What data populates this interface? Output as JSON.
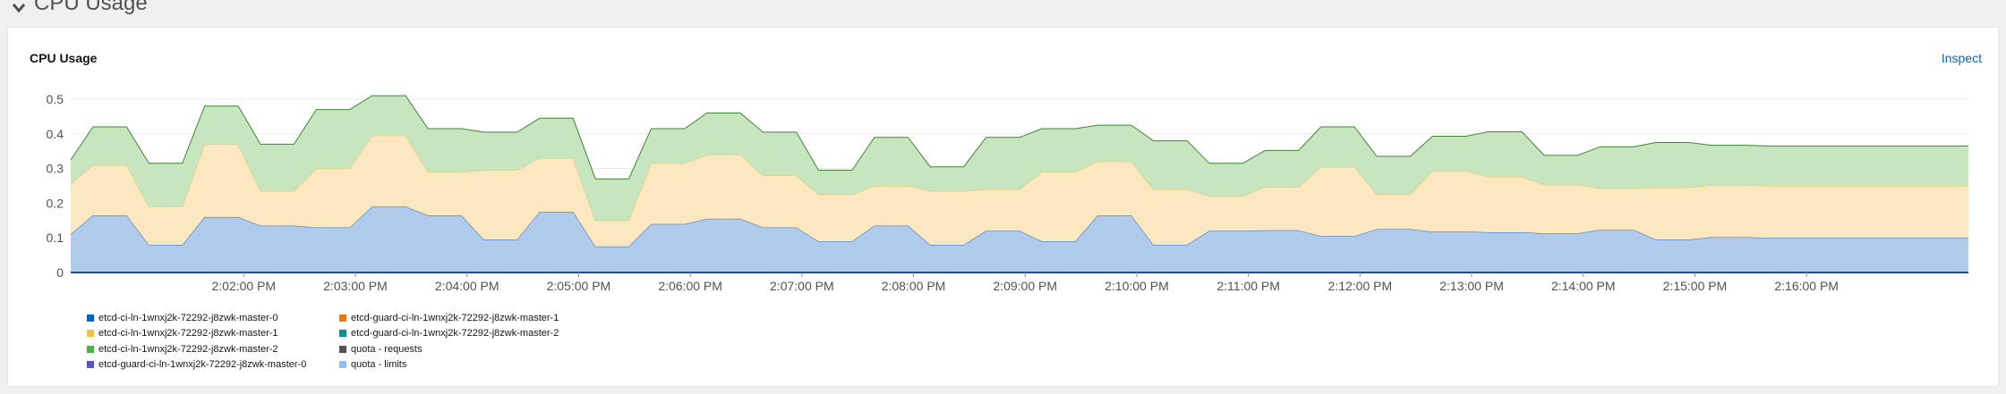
{
  "section": {
    "title": "CPU Usage",
    "chevron_icon": "chevron-down-icon"
  },
  "card": {
    "title": "CPU Usage",
    "inspect_label": "Inspect"
  },
  "chart_data": {
    "type": "area",
    "stacked": true,
    "title": "CPU Usage",
    "xlabel": "",
    "ylabel": "",
    "ylim": [
      0,
      0.5
    ],
    "yticks": [
      "0",
      "0.1",
      "0.2",
      "0.3",
      "0.4",
      "0.5"
    ],
    "xtick_labels": [
      "2:02:00 PM",
      "2:03:00 PM",
      "2:04:00 PM",
      "2:05:00 PM",
      "2:06:00 PM",
      "2:07:00 PM",
      "2:08:00 PM",
      "2:09:00 PM",
      "2:10:00 PM",
      "2:11:00 PM",
      "2:12:00 PM",
      "2:13:00 PM",
      "2:14:00 PM",
      "2:15:00 PM",
      "2:16:00 PM"
    ],
    "x_minutes": [
      -0.55,
      -0.35,
      -0.05,
      0.15,
      0.45,
      0.65,
      0.95,
      1.15,
      1.45,
      1.65,
      1.95,
      2.15,
      2.45,
      2.65,
      2.95,
      3.15,
      3.45,
      3.65,
      3.95,
      4.15,
      4.45,
      4.65,
      4.95,
      5.15,
      5.45,
      5.65,
      5.95,
      6.15,
      6.45,
      6.65,
      6.95,
      7.15,
      7.45,
      7.65,
      7.95,
      8.15,
      8.45,
      8.65,
      8.95,
      9.15,
      9.45,
      9.65,
      9.95,
      10.15,
      10.45,
      10.65,
      10.95,
      11.15,
      11.45,
      11.65,
      11.95,
      12.15,
      12.45,
      12.65,
      12.95,
      13.15,
      13.45,
      13.65,
      13.95,
      14.15,
      14.45,
      14.65,
      14.95,
      15.15,
      15.45,
      15.65,
      15.95,
      16.15,
      16.45
    ],
    "x_axis_start": "2:01:00 PM",
    "series": [
      {
        "name": "etcd-ci-ln-1wnxj2k-72292-j8zwk-master-0",
        "color": "#b0cbec",
        "line": "#2b6cc4",
        "values": [
          0.11,
          0.165,
          0.165,
          0.08,
          0.08,
          0.16,
          0.16,
          0.135,
          0.135,
          0.13,
          0.13,
          0.19,
          0.19,
          0.165,
          0.165,
          0.095,
          0.095,
          0.175,
          0.175,
          0.075,
          0.075,
          0.14,
          0.14,
          0.155,
          0.155,
          0.13,
          0.13,
          0.09,
          0.09,
          0.135,
          0.135,
          0.08,
          0.08,
          0.12,
          0.12,
          0.09,
          0.09,
          0.165,
          0.165,
          0.08,
          0.08,
          0.12,
          0.12,
          0.122,
          0.122,
          0.105,
          0.105,
          0.125,
          0.125,
          0.118,
          0.118,
          0.116,
          0.116,
          0.113,
          0.113,
          0.123,
          0.123,
          0.095,
          0.095,
          0.102,
          0.102,
          0.1,
          0.1,
          0.1,
          0.1,
          0.1,
          0.1,
          0.1,
          0.1
        ]
      },
      {
        "name": "etcd-ci-ln-1wnxj2k-72292-j8zwk-master-1",
        "color": "#fbe7c0",
        "line": "#e3c45e",
        "values": [
          0.145,
          0.145,
          0.145,
          0.11,
          0.11,
          0.21,
          0.21,
          0.1,
          0.1,
          0.17,
          0.17,
          0.205,
          0.205,
          0.125,
          0.125,
          0.2,
          0.2,
          0.155,
          0.155,
          0.075,
          0.075,
          0.175,
          0.175,
          0.185,
          0.185,
          0.15,
          0.15,
          0.135,
          0.135,
          0.115,
          0.115,
          0.155,
          0.155,
          0.12,
          0.12,
          0.2,
          0.2,
          0.155,
          0.155,
          0.16,
          0.16,
          0.1,
          0.1,
          0.125,
          0.125,
          0.2,
          0.2,
          0.1,
          0.1,
          0.175,
          0.175,
          0.16,
          0.16,
          0.14,
          0.14,
          0.12,
          0.12,
          0.15,
          0.15,
          0.15,
          0.15,
          0.15,
          0.15,
          0.15,
          0.15,
          0.15,
          0.15,
          0.15,
          0.15
        ]
      },
      {
        "name": "etcd-ci-ln-1wnxj2k-72292-j8zwk-master-2",
        "color": "#c7e6bf",
        "line": "#3e8635",
        "values": [
          0.07,
          0.11,
          0.11,
          0.125,
          0.125,
          0.11,
          0.11,
          0.135,
          0.135,
          0.17,
          0.17,
          0.115,
          0.115,
          0.125,
          0.125,
          0.11,
          0.11,
          0.115,
          0.115,
          0.12,
          0.12,
          0.1,
          0.1,
          0.12,
          0.12,
          0.125,
          0.125,
          0.07,
          0.07,
          0.14,
          0.14,
          0.07,
          0.07,
          0.15,
          0.15,
          0.125,
          0.125,
          0.105,
          0.105,
          0.14,
          0.14,
          0.095,
          0.095,
          0.105,
          0.105,
          0.115,
          0.115,
          0.11,
          0.11,
          0.1,
          0.1,
          0.13,
          0.13,
          0.085,
          0.085,
          0.12,
          0.12,
          0.13,
          0.13,
          0.115,
          0.115,
          0.115,
          0.115,
          0.115,
          0.115,
          0.115,
          0.115,
          0.115,
          0.115
        ]
      }
    ],
    "legend_position": "bottom-left",
    "legend": [
      {
        "label": "etcd-ci-ln-1wnxj2k-72292-j8zwk-master-0",
        "color": "#0066cc"
      },
      {
        "label": "etcd-ci-ln-1wnxj2k-72292-j8zwk-master-1",
        "color": "#f4c145"
      },
      {
        "label": "etcd-ci-ln-1wnxj2k-72292-j8zwk-master-2",
        "color": "#4cb140"
      },
      {
        "label": "etcd-guard-ci-ln-1wnxj2k-72292-j8zwk-master-0",
        "color": "#5752d1"
      },
      {
        "label": "etcd-guard-ci-ln-1wnxj2k-72292-j8zwk-master-1",
        "color": "#ec7a08"
      },
      {
        "label": "etcd-guard-ci-ln-1wnxj2k-72292-j8zwk-master-2",
        "color": "#009596"
      },
      {
        "label": "quota - requests",
        "color": "#4f5255"
      },
      {
        "label": "quota - limits",
        "color": "#8bc1f7"
      }
    ],
    "grid": true
  }
}
